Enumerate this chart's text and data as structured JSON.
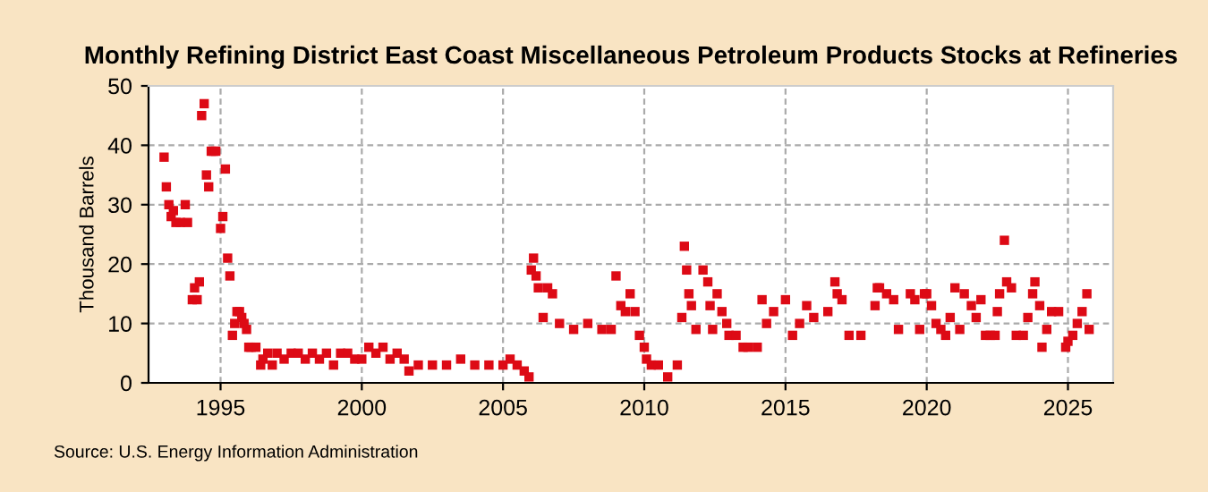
{
  "chart_data": {
    "type": "scatter",
    "title": "Monthly Refining District East Coast Miscellaneous Petroleum Products Stocks at Refineries",
    "ylabel": "Thousand Barrels",
    "annotations": [
      "Source: U.S. Energy Information Administration"
    ],
    "x": [
      1993.0,
      1993.08,
      1993.17,
      1993.25,
      1993.33,
      1993.42,
      1993.58,
      1993.75,
      1993.83,
      1994.0,
      1994.08,
      1994.17,
      1994.25,
      1994.33,
      1994.42,
      1994.5,
      1994.58,
      1994.67,
      1994.75,
      1994.83,
      1995.0,
      1995.08,
      1995.17,
      1995.25,
      1995.33,
      1995.42,
      1995.5,
      1995.58,
      1995.67,
      1995.75,
      1995.83,
      1995.92,
      1996.0,
      1996.08,
      1996.25,
      1996.42,
      1996.5,
      1996.67,
      1996.83,
      1997.0,
      1997.25,
      1997.5,
      1997.75,
      1998.0,
      1998.25,
      1998.5,
      1998.75,
      1999.0,
      1999.25,
      1999.5,
      1999.75,
      2000.0,
      2000.25,
      2000.5,
      2000.75,
      2001.0,
      2001.25,
      2001.5,
      2001.67,
      2002.0,
      2002.5,
      2003.0,
      2003.5,
      2004.0,
      2004.5,
      2005.0,
      2005.25,
      2005.5,
      2005.75,
      2005.92,
      2006.0,
      2006.08,
      2006.17,
      2006.25,
      2006.42,
      2006.58,
      2006.75,
      2007.0,
      2007.5,
      2008.0,
      2008.5,
      2008.83,
      2009.0,
      2009.17,
      2009.33,
      2009.5,
      2009.67,
      2009.83,
      2010.0,
      2010.08,
      2010.25,
      2010.5,
      2010.83,
      2011.17,
      2011.33,
      2011.42,
      2011.5,
      2011.58,
      2011.67,
      2011.83,
      2012.08,
      2012.25,
      2012.33,
      2012.42,
      2012.58,
      2012.75,
      2012.92,
      2013.0,
      2013.25,
      2013.5,
      2013.67,
      2014.0,
      2014.17,
      2014.33,
      2014.58,
      2015.0,
      2015.25,
      2015.5,
      2015.75,
      2016.0,
      2016.5,
      2016.75,
      2016.83,
      2017.0,
      2017.25,
      2017.67,
      2018.17,
      2018.25,
      2018.33,
      2018.58,
      2018.83,
      2019.0,
      2019.42,
      2019.58,
      2019.75,
      2019.92,
      2020.0,
      2020.17,
      2020.33,
      2020.5,
      2020.67,
      2020.83,
      2021.0,
      2021.17,
      2021.33,
      2021.58,
      2021.75,
      2021.92,
      2022.08,
      2022.25,
      2022.42,
      2022.5,
      2022.58,
      2022.75,
      2022.83,
      2023.0,
      2023.17,
      2023.42,
      2023.58,
      2023.75,
      2023.83,
      2024.0,
      2024.08,
      2024.25,
      2024.42,
      2024.67,
      2024.92,
      2025.0,
      2025.17,
      2025.33,
      2025.5,
      2025.67,
      2025.75
    ],
    "values": [
      38,
      33,
      30,
      28,
      29,
      27,
      27,
      30,
      27,
      14,
      16,
      14,
      17,
      45,
      47,
      35,
      33,
      39,
      39,
      39,
      26,
      28,
      36,
      21,
      18,
      8,
      10,
      12,
      12,
      11,
      10,
      9,
      6,
      6,
      6,
      3,
      4,
      5,
      3,
      5,
      4,
      5,
      5,
      4,
      5,
      4,
      5,
      3,
      5,
      5,
      4,
      4,
      6,
      5,
      6,
      4,
      5,
      4,
      2,
      3,
      3,
      3,
      4,
      3,
      3,
      3,
      4,
      3,
      2,
      1,
      19,
      21,
      18,
      16,
      11,
      16,
      15,
      10,
      9,
      10,
      9,
      9,
      18,
      13,
      12,
      15,
      12,
      8,
      6,
      4,
      3,
      3,
      1,
      3,
      11,
      23,
      19,
      15,
      13,
      9,
      19,
      17,
      13,
      9,
      15,
      12,
      10,
      8,
      8,
      6,
      6,
      6,
      14,
      10,
      12,
      14,
      8,
      10,
      13,
      11,
      12,
      17,
      15,
      14,
      8,
      8,
      13,
      16,
      16,
      15,
      14,
      9,
      15,
      14,
      9,
      15,
      15,
      13,
      10,
      9,
      8,
      11,
      16,
      9,
      15,
      13,
      11,
      14,
      8,
      8,
      8,
      12,
      15,
      24,
      17,
      16,
      8,
      8,
      11,
      15,
      17,
      13,
      6,
      9,
      12,
      12,
      6,
      7,
      8,
      10,
      12,
      15,
      9
    ],
    "color": "#dd0a15",
    "marker": "square",
    "xlim": [
      1992.45,
      2026.6
    ],
    "xticks": [
      1995,
      2000,
      2005,
      2010,
      2015,
      2020,
      2025
    ],
    "ylim": [
      0,
      50
    ],
    "yticks": [
      0,
      10,
      20,
      30,
      40,
      50
    ],
    "grid": true
  }
}
